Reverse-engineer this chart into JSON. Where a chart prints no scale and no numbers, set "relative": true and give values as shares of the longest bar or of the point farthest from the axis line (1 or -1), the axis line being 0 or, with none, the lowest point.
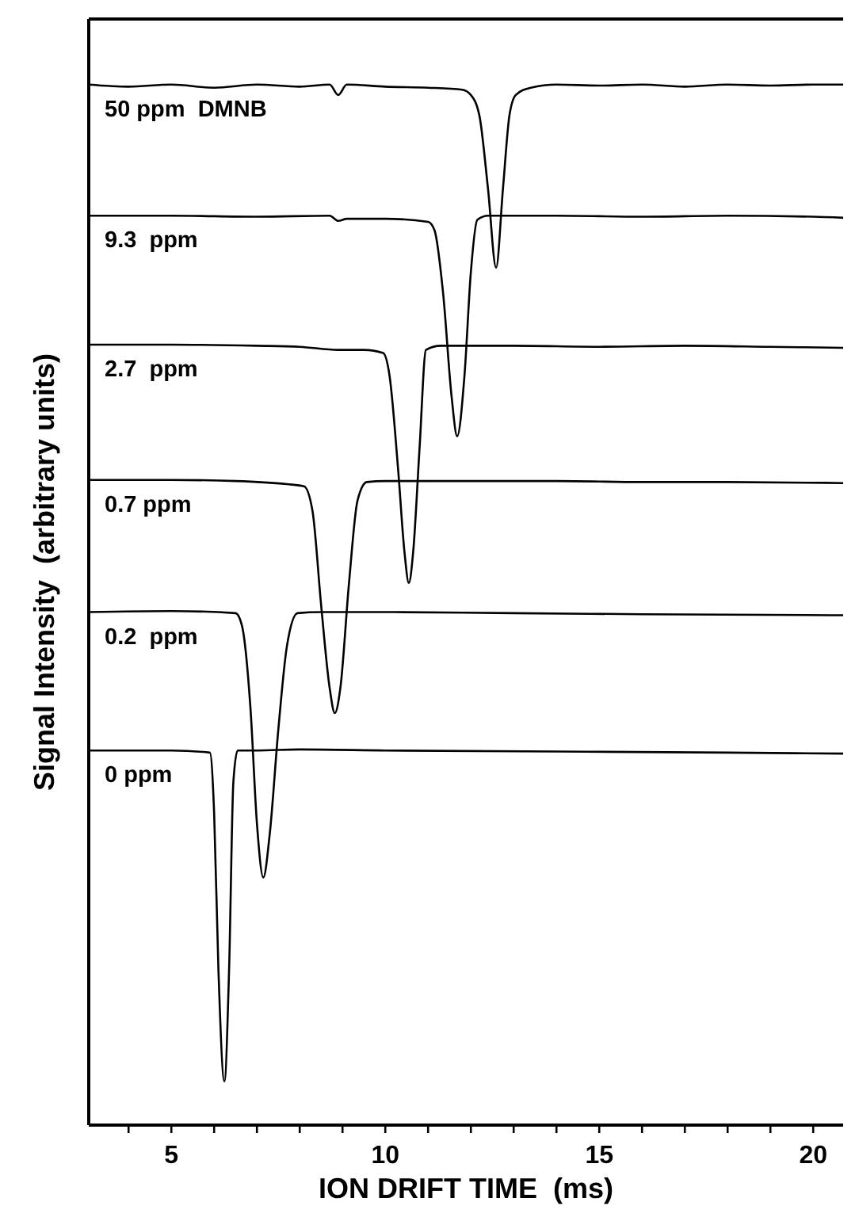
{
  "chart_data": {
    "type": "line",
    "relative": true,
    "xlabel": "ION DRIFT TIME  (ms)",
    "ylabel": "Signal Intensity  (arbitrary units)",
    "xlim": [
      3.07,
      20.7
    ],
    "xticks": [
      {
        "value": 4,
        "label": null
      },
      5,
      {
        "value": 6,
        "label": null
      },
      {
        "value": 7,
        "label": null
      },
      {
        "value": 8,
        "label": null
      },
      {
        "value": 9,
        "label": null
      },
      10,
      {
        "value": 11,
        "label": null
      },
      {
        "value": 12,
        "label": null
      },
      {
        "value": 13,
        "label": null
      },
      {
        "value": 14,
        "label": null
      },
      15,
      {
        "value": 16,
        "label": null
      },
      {
        "value": 17,
        "label": null
      },
      {
        "value": 18,
        "label": null
      },
      {
        "value": 19,
        "label": null
      },
      20
    ],
    "series": [
      {
        "name": "50 ppm  DMNB",
        "color": "#000000",
        "x": [
          3.07,
          4,
          5,
          6,
          7,
          8,
          8.7,
          8.9,
          9.1,
          10,
          11,
          11.8,
          12.0,
          12.2,
          12.4,
          12.59,
          12.75,
          12.9,
          13.05,
          13.4,
          14,
          15,
          16,
          17,
          18,
          19,
          20,
          20.7
        ],
        "values": [
          1.0,
          0.998,
          1.0,
          0.997,
          1.0,
          0.998,
          1.0,
          0.99,
          1.0,
          0.998,
          0.997,
          0.995,
          0.99,
          0.97,
          0.9,
          0.824,
          0.9,
          0.97,
          0.99,
          0.997,
          1.0,
          0.999,
          1.0,
          0.998,
          1.0,
          0.999,
          1.0,
          1.0
        ]
      },
      {
        "name": "9.3  ppm",
        "color": "#000000",
        "x": [
          3.07,
          5,
          7,
          8.7,
          8.9,
          9.1,
          10,
          11,
          11.15,
          11.35,
          11.55,
          11.68,
          11.85,
          12.0,
          12.15,
          12.4,
          14,
          16,
          18,
          20,
          20.7
        ],
        "values": [
          0.874,
          0.874,
          0.873,
          0.874,
          0.869,
          0.871,
          0.871,
          0.868,
          0.86,
          0.8,
          0.7,
          0.662,
          0.72,
          0.82,
          0.87,
          0.874,
          0.874,
          0.873,
          0.874,
          0.873,
          0.872
        ]
      },
      {
        "name": "2.7  ppm",
        "color": "#000000",
        "x": [
          3.07,
          5,
          7,
          8,
          8.9,
          9.5,
          9.95,
          10.1,
          10.3,
          10.45,
          10.55,
          10.65,
          10.8,
          10.95,
          11.3,
          13,
          15,
          17,
          19,
          20.7
        ],
        "values": [
          0.75,
          0.75,
          0.749,
          0.748,
          0.745,
          0.745,
          0.742,
          0.72,
          0.63,
          0.55,
          0.521,
          0.55,
          0.65,
          0.745,
          0.749,
          0.749,
          0.748,
          0.749,
          0.748,
          0.747
        ]
      },
      {
        "name": "0.7 ppm",
        "color": "#000000",
        "x": [
          3.07,
          5,
          6.5,
          7.7,
          8.1,
          8.3,
          8.5,
          8.7,
          8.82,
          8.95,
          9.15,
          9.35,
          9.57,
          10,
          12,
          14,
          16,
          18,
          20.7
        ],
        "values": [
          0.62,
          0.62,
          0.619,
          0.616,
          0.614,
          0.59,
          0.5,
          0.42,
          0.396,
          0.42,
          0.52,
          0.6,
          0.618,
          0.619,
          0.619,
          0.619,
          0.618,
          0.618,
          0.617
        ]
      },
      {
        "name": "0.2  ppm",
        "color": "#000000",
        "x": [
          3.07,
          5,
          6.5,
          6.65,
          6.85,
          7.0,
          7.15,
          7.3,
          7.5,
          7.7,
          7.95,
          8.5,
          10,
          13,
          16,
          20.7
        ],
        "values": [
          0.493,
          0.494,
          0.492,
          0.48,
          0.4,
          0.29,
          0.238,
          0.28,
          0.38,
          0.46,
          0.492,
          0.493,
          0.493,
          0.492,
          0.491,
          0.49
        ]
      },
      {
        "name": "0 ppm",
        "color": "#000000",
        "x": [
          3.07,
          5,
          5.9,
          6.0,
          6.1,
          6.24,
          6.35,
          6.45,
          6.55,
          7,
          8,
          10,
          14,
          18,
          20.7
        ],
        "values": [
          0.36,
          0.36,
          0.358,
          0.3,
          0.15,
          0.042,
          0.15,
          0.33,
          0.36,
          0.36,
          0.361,
          0.36,
          0.359,
          0.358,
          0.357
        ]
      }
    ]
  }
}
